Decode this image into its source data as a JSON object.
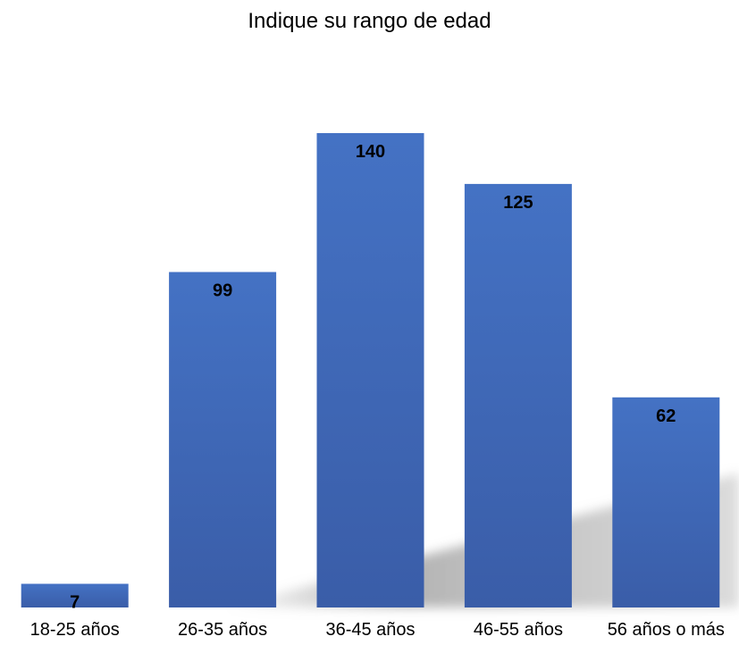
{
  "chart_data": {
    "type": "bar",
    "title": "Indique su rango de edad",
    "categories": [
      "18-25 años",
      "26-35 años",
      "36-45 años",
      "46-55 años",
      "56 años o más"
    ],
    "values": [
      7,
      99,
      140,
      125,
      62
    ],
    "data_labels": [
      "7",
      "99",
      "140",
      "125",
      "62"
    ],
    "xlabel": "",
    "ylabel": "",
    "ylim": [
      0,
      140
    ],
    "grid": false,
    "legend": "none",
    "bar_color": "#4472C4",
    "bar_color_dark": "#3A5DA8"
  }
}
